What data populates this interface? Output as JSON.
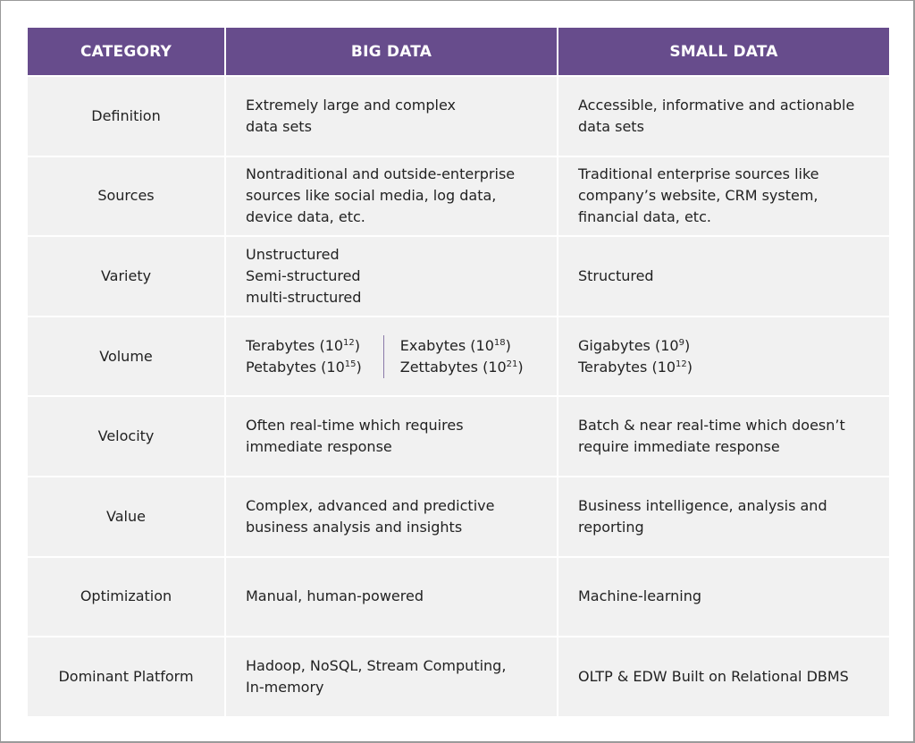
{
  "header": {
    "category": "CATEGORY",
    "big_data": "BIG DATA",
    "small_data": "SMALL DATA"
  },
  "colors": {
    "header_bg": "#674c8c",
    "cell_bg": "#f1f1f1",
    "text": "#222222"
  },
  "rows": [
    {
      "category": "Definition",
      "big": "Extremely large and complex\ndata sets",
      "small": "Accessible, informative and actionable\ndata sets"
    },
    {
      "category": "Sources",
      "big": "Nontraditional and outside-enterprise\nsources like social media, log data,\ndevice data, etc.",
      "small": "Traditional enterprise sources like\ncompany’s website, CRM system,\nfinancial data, etc."
    },
    {
      "category": "Variety",
      "big": "Unstructured\nSemi-structured\nmulti-structured",
      "small": "Structured"
    },
    {
      "category": "Volume",
      "big_volume": {
        "left": [
          {
            "unit": "Terabytes (10",
            "exp": "12",
            "close": ")"
          },
          {
            "unit": "Petabytes (10",
            "exp": "15",
            "close": ")"
          }
        ],
        "right": [
          {
            "unit": "Exabytes (10",
            "exp": "18",
            "close": ")"
          },
          {
            "unit": "Zettabytes (10",
            "exp": "21",
            "close": ")"
          }
        ]
      },
      "small_volume": [
        {
          "unit": "Gigabytes (10",
          "exp": "9",
          "close": ")"
        },
        {
          "unit": "Terabytes (10",
          "exp": "12",
          "close": ")"
        }
      ]
    },
    {
      "category": "Velocity",
      "big": "Often real-time which requires\nimmediate response",
      "small": "Batch & near real-time which doesn’t\nrequire immediate response"
    },
    {
      "category": "Value",
      "big": "Complex, advanced and predictive\nbusiness analysis and insights",
      "small": "Business intelligence, analysis and\nreporting"
    },
    {
      "category": "Optimization",
      "big": "Manual, human-powered",
      "small": "Machine-learning"
    },
    {
      "category": "Dominant Platform",
      "big": "Hadoop, NoSQL, Stream Computing,\nIn-memory",
      "small": "OLTP & EDW Built on Relational DBMS"
    }
  ]
}
